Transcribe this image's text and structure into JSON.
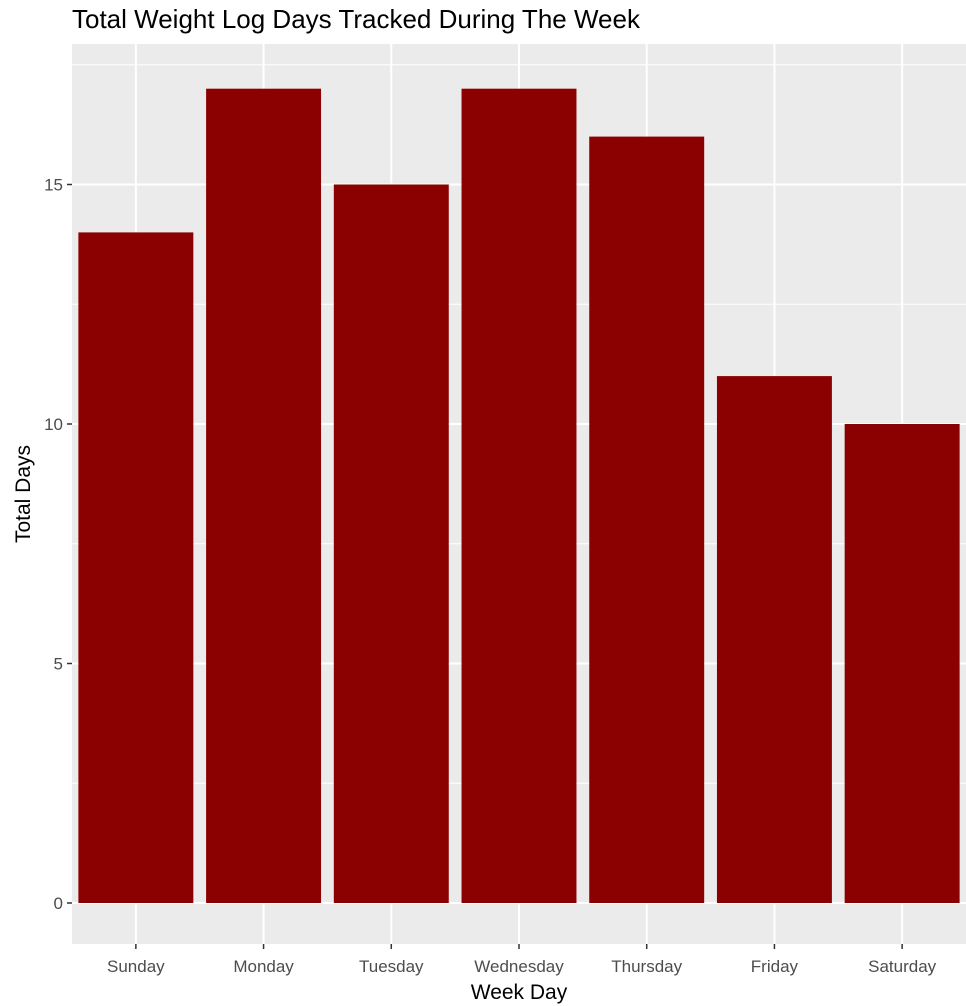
{
  "chart_data": {
    "type": "bar",
    "title": "Total Weight Log Days Tracked During The Week",
    "xlabel": "Week Day",
    "ylabel": "Total Days",
    "categories": [
      "Sunday",
      "Monday",
      "Tuesday",
      "Wednesday",
      "Thursday",
      "Friday",
      "Saturday"
    ],
    "values": [
      14,
      17,
      15,
      17,
      16,
      11,
      10
    ],
    "yticks": [
      0,
      5,
      10,
      15
    ],
    "ylim": [
      0,
      17.85
    ],
    "grid": true,
    "colors": {
      "bar": "#8b0000",
      "panel": "#ebebeb",
      "grid": "#ffffff"
    }
  }
}
